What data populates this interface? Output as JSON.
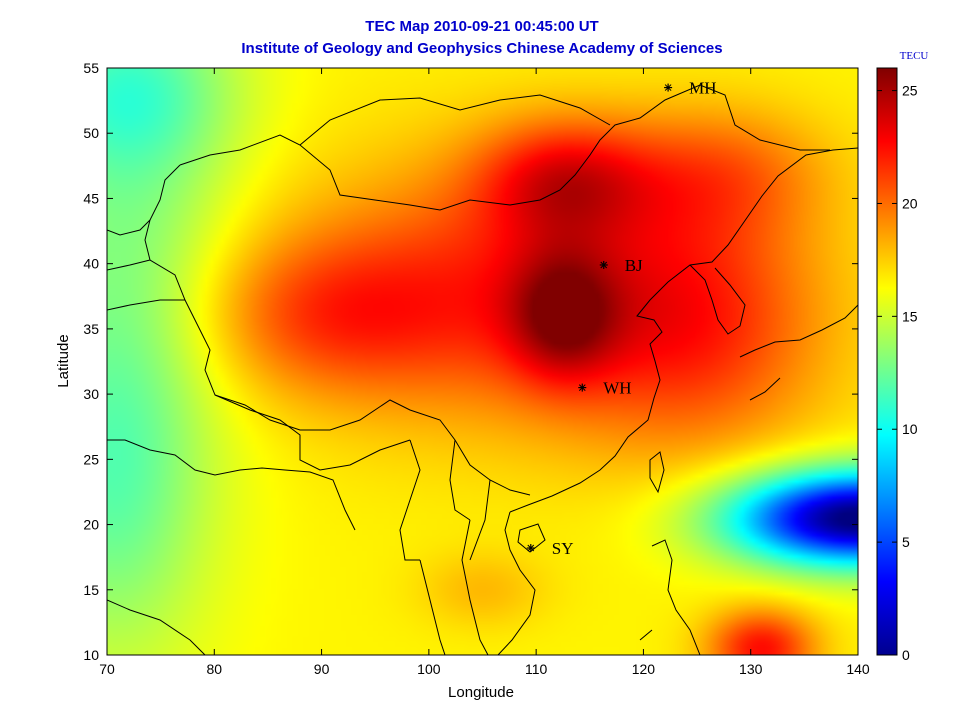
{
  "chart_data": {
    "type": "heatmap",
    "title": "TEC Map 2010-09-21 00:45:00 UT",
    "subtitle": "Institute of Geology and Geophysics Chinese Academy of Sciences",
    "xlabel": "Longitude",
    "ylabel": "Latitude",
    "xlim": [
      70,
      140
    ],
    "ylim": [
      10,
      55
    ],
    "x_ticks": [
      "70",
      "80",
      "90",
      "100",
      "110",
      "120",
      "130",
      "140"
    ],
    "y_ticks": [
      "10",
      "15",
      "20",
      "25",
      "30",
      "35",
      "40",
      "45",
      "50",
      "55"
    ],
    "colorbar": {
      "label": "TECU",
      "range": [
        0,
        26
      ],
      "ticks": [
        "0",
        "5",
        "10",
        "15",
        "20",
        "25"
      ],
      "colormap": "jet"
    },
    "stations": [
      {
        "name": "MH",
        "lon": 122.3,
        "lat": 53.5
      },
      {
        "name": "BJ",
        "lon": 116.3,
        "lat": 39.9
      },
      {
        "name": "WH",
        "lon": 114.3,
        "lat": 30.5
      },
      {
        "name": "SY",
        "lon": 109.5,
        "lat": 18.2
      }
    ],
    "tec_features": [
      {
        "feature": "max-north",
        "lon": 112.5,
        "lat": 46.5,
        "tec": 26
      },
      {
        "feature": "max-central",
        "lon": 112.5,
        "lat": 36.0,
        "tec": 26
      },
      {
        "feature": "min-southeast",
        "lon": 140.0,
        "lat": 20.5,
        "tec": 5
      },
      {
        "feature": "west-edge",
        "lon": 72.0,
        "lat": 22.0,
        "tec": 15
      }
    ],
    "grid": false
  }
}
